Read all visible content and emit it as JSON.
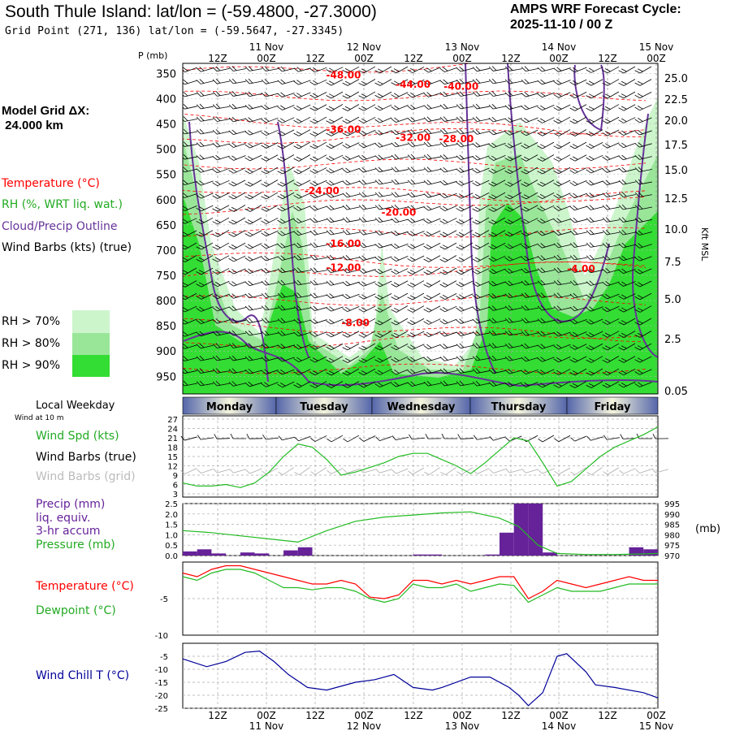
{
  "header": {
    "title": "South Thule Island:  lat/lon = (-59.4800, -27.3000)",
    "grid_point": "Grid Point (271, 136) lat/lon = (-59.5647, -27.3345)",
    "forecast_label": "AMPS WRF Forecast Cycle:",
    "forecast_cycle": "2025-11-10 / 00  Z"
  },
  "side_labels": {
    "model_grid_line1": "Model Grid ΔX:",
    "model_grid_line2": " 24.000 km",
    "temperature": "Temperature (°C)",
    "rh": "RH (%, WRT liq. wat.)",
    "cloud": "Cloud/Precip Outline",
    "wind_barbs": "Wind Barbs (kts) (true)",
    "rh70": "RH > 70%",
    "rh80": "RH > 80%",
    "rh90": "RH > 90%",
    "local_weekday": "Local Weekday",
    "wind_10m": "Wind at 10 m",
    "wind_spd": "Wind Spd (kts)",
    "wind_barbs_true": "Wind Barbs (true)",
    "wind_barbs_grid": "Wind Barbs (grid)",
    "precip_1": "Precip (mm)",
    "precip_2": "liq. equiv.",
    "precip_3": "3-hr accum",
    "pressure": "Pressure (mb)",
    "temp2": "Temperature (°C)",
    "dewpoint": "Dewpoint (°C)",
    "windchill": "Wind Chill T (°C)",
    "p_mb": "P (mb)",
    "kft": "Kft MSL",
    "mb_right": "(mb)"
  },
  "colors": {
    "temperature": "#ff0000",
    "rh": "#22bb22",
    "cloud": "#663399",
    "wind_spd": "#22bb22",
    "pressure": "#22bb22",
    "precip": "#662299",
    "dewpoint": "#22bb22",
    "windchill": "#000099",
    "rh70": "#ccf5cc",
    "rh80": "#99e699",
    "rh90": "#33dd33",
    "grid_barbs": "#aaaaaa"
  },
  "chart_data": [
    {
      "type": "heatmap",
      "name": "cross-section",
      "time_ticks": [
        "12Z",
        "00Z",
        "12Z",
        "00Z",
        "12Z",
        "00Z",
        "12Z",
        "00Z",
        "12Z",
        "00Z"
      ],
      "date_labels": [
        "11 Nov",
        "12 Nov",
        "13 Nov",
        "14 Nov",
        "15 Nov"
      ],
      "pressure_levels": [
        350,
        400,
        450,
        500,
        550,
        600,
        650,
        700,
        750,
        800,
        850,
        900,
        950
      ],
      "height_kft": [
        "25.0",
        "22.5",
        "20.0",
        "17.5",
        "15.0",
        "12.5",
        "10.0",
        "7.5",
        "5.0",
        "2.5",
        "0.05"
      ],
      "temperature_labels": [
        {
          "text": "-48.00",
          "t": 33.5,
          "p": 360
        },
        {
          "text": "-44.00",
          "t": 48,
          "p": 378
        },
        {
          "text": "-40.00",
          "t": 58,
          "p": 382
        },
        {
          "text": "-36.00",
          "t": 33.5,
          "p": 468
        },
        {
          "text": "-32.00",
          "t": 48,
          "p": 484
        },
        {
          "text": "-28.00",
          "t": 57,
          "p": 486
        },
        {
          "text": "-24.00",
          "t": 29,
          "p": 589
        },
        {
          "text": "-20.00",
          "t": 45,
          "p": 632
        },
        {
          "text": "-16.00",
          "t": 33.5,
          "p": 694
        },
        {
          "text": "-12.00",
          "t": 33.5,
          "p": 741
        },
        {
          "text": "-8.00",
          "t": 36,
          "p": 851
        },
        {
          "text": "-4.00",
          "t": 83,
          "p": 744
        }
      ]
    },
    {
      "type": "line",
      "name": "wind-speed",
      "y_ticks": [
        3,
        6,
        9,
        12,
        15,
        18,
        21,
        24,
        27
      ],
      "ylim": [
        3,
        27
      ],
      "x": [
        0,
        3,
        6,
        9,
        12,
        15,
        18,
        21,
        24,
        27,
        30,
        33,
        36,
        39,
        42,
        45,
        48,
        51,
        54,
        57,
        60,
        63,
        66,
        69,
        72,
        75,
        78,
        81,
        84,
        87,
        90,
        93,
        96,
        99
      ],
      "series": [
        {
          "values": [
            6.5,
            5.5,
            5.5,
            6,
            5,
            6.5,
            10,
            15,
            19,
            18,
            14,
            9,
            10,
            11.5,
            13,
            15,
            16,
            16,
            14,
            12,
            9.5,
            13,
            17,
            21,
            20,
            13,
            5.5,
            7,
            11,
            15,
            18,
            20,
            22,
            24.5
          ]
        }
      ]
    },
    {
      "type": "bar",
      "name": "precip-3hr",
      "x": [
        3,
        6,
        9,
        12,
        15,
        18,
        21,
        24,
        27,
        30,
        33,
        36,
        39,
        42,
        45,
        48,
        51,
        54,
        57,
        60,
        63,
        66,
        69,
        72,
        75,
        78,
        81,
        84,
        87,
        90,
        93,
        96,
        99
      ],
      "values": [
        0.2,
        0.3,
        0.1,
        0.0,
        0.15,
        0.1,
        0.0,
        0.25,
        0.4,
        0.0,
        0.0,
        0.0,
        0.0,
        0.0,
        0.0,
        0.0,
        0.05,
        0.05,
        0.0,
        0.0,
        0.0,
        0.05,
        1.1,
        2.5,
        2.5,
        0.15,
        0.0,
        0.0,
        0.0,
        0.0,
        0.0,
        0.4,
        0.3
      ],
      "y_ticks": [
        0.0,
        0.5,
        1.0,
        1.5,
        2.0,
        2.5
      ],
      "ylim": [
        0,
        2.5
      ]
    },
    {
      "type": "line",
      "name": "pressure",
      "y_ticks": [
        970,
        975,
        980,
        985,
        990,
        995
      ],
      "ylim": [
        970,
        995
      ],
      "x": [
        0,
        6,
        12,
        18,
        24,
        30,
        36,
        42,
        48,
        54,
        60,
        66,
        70,
        74,
        78,
        84,
        90,
        96,
        99
      ],
      "series": [
        {
          "values": [
            982,
            981,
            979.5,
            978,
            976.5,
            982,
            986.5,
            988.5,
            989.5,
            990.5,
            991,
            988,
            984,
            975,
            971,
            970.5,
            970.5,
            970.8,
            971
          ]
        }
      ]
    },
    {
      "type": "line",
      "name": "temperature-dewpoint",
      "y_ticks": [
        -5,
        -10
      ],
      "ylim": [
        -10,
        0
      ],
      "x": [
        0,
        3,
        6,
        9,
        12,
        15,
        18,
        21,
        24,
        27,
        30,
        33,
        36,
        39,
        42,
        45,
        48,
        51,
        54,
        57,
        60,
        63,
        66,
        69,
        72,
        75,
        78,
        81,
        84,
        87,
        90,
        93,
        96,
        99
      ],
      "series": [
        {
          "name": "Temperature (°C)",
          "values": [
            -1.5,
            -2,
            -1,
            -0.5,
            -0.5,
            -1,
            -1.5,
            -2,
            -2.5,
            -3,
            -3,
            -2.5,
            -3,
            -4.8,
            -5,
            -4.5,
            -2.5,
            -2.5,
            -3,
            -2.5,
            -3,
            -2.5,
            -2,
            -2,
            -5,
            -4,
            -2.5,
            -3,
            -3.5,
            -3,
            -2.5,
            -2,
            -2.5,
            -2.5
          ]
        },
        {
          "name": "Dewpoint (°C)",
          "values": [
            -2,
            -2.5,
            -1.5,
            -1,
            -1,
            -1.5,
            -2.5,
            -3.5,
            -3.5,
            -3.8,
            -3.5,
            -3.5,
            -4,
            -5,
            -5.5,
            -5,
            -3,
            -3.5,
            -3.5,
            -3,
            -4,
            -3.5,
            -3,
            -3.2,
            -5.5,
            -4.5,
            -3.5,
            -4,
            -4,
            -4,
            -3.5,
            -3,
            -3,
            -3
          ]
        }
      ]
    },
    {
      "type": "line",
      "name": "wind-chill",
      "y_ticks": [
        -5,
        -10,
        -15,
        -20,
        -25
      ],
      "ylim": [
        -25,
        0
      ],
      "x": [
        0,
        5,
        9,
        13,
        16,
        19,
        22,
        26,
        30,
        36,
        40,
        44,
        48,
        52,
        54,
        60,
        64,
        68,
        70,
        72,
        75,
        78,
        80,
        84,
        86,
        90,
        96,
        99
      ],
      "series": [
        {
          "values": [
            -6,
            -9,
            -7,
            -3.5,
            -3,
            -7,
            -12,
            -17,
            -18,
            -15,
            -14,
            -12,
            -17,
            -18,
            -17,
            -13,
            -13,
            -17,
            -20,
            -24,
            -19,
            -5,
            -4,
            -11,
            -16,
            -17,
            -19,
            -21
          ]
        }
      ]
    }
  ],
  "weekdays": [
    "Monday",
    "Tuesday",
    "Wednesday",
    "Thursday",
    "Friday"
  ]
}
